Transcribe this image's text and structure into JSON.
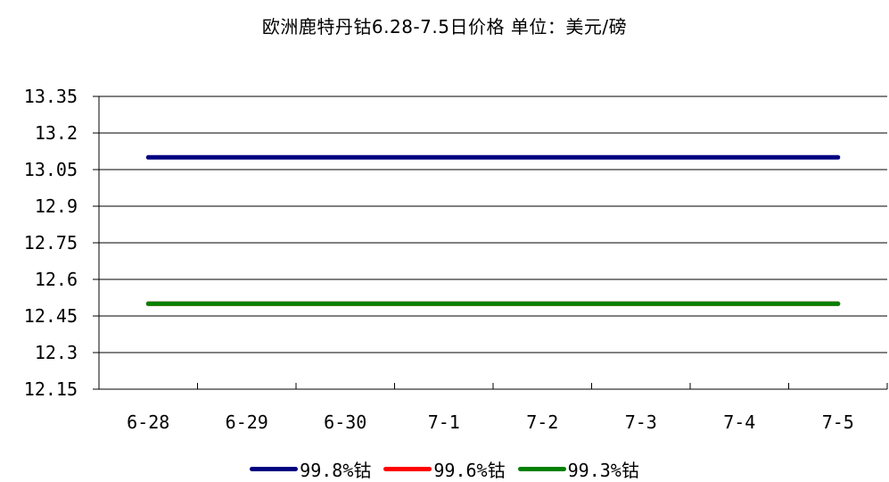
{
  "chart_data": {
    "type": "line",
    "title": "欧洲鹿特丹钴6.28-7.5日价格 单位：美元/磅",
    "categories": [
      "6-28",
      "6-29",
      "6-30",
      "7-1",
      "7-2",
      "7-3",
      "7-4",
      "7-5"
    ],
    "y_ticks": [
      "13.35",
      "13.2",
      "13.05",
      "12.9",
      "12.75",
      "12.6",
      "12.45",
      "12.3",
      "12.15"
    ],
    "ylim": [
      12.15,
      13.35
    ],
    "grid": true,
    "legend_position": "bottom",
    "series": [
      {
        "name": "99.8%钴",
        "color": "#000080",
        "values": [
          13.1,
          13.1,
          13.1,
          13.1,
          13.1,
          13.1,
          13.1,
          13.1
        ]
      },
      {
        "name": "99.6%钴",
        "color": "#ff0000",
        "values": [
          12.5,
          12.5,
          12.5,
          12.5,
          12.5,
          12.5,
          12.5,
          12.5
        ]
      },
      {
        "name": "99.3%钴",
        "color": "#008000",
        "values": [
          12.5,
          12.5,
          12.5,
          12.5,
          12.5,
          12.5,
          12.5,
          12.5
        ]
      }
    ]
  }
}
